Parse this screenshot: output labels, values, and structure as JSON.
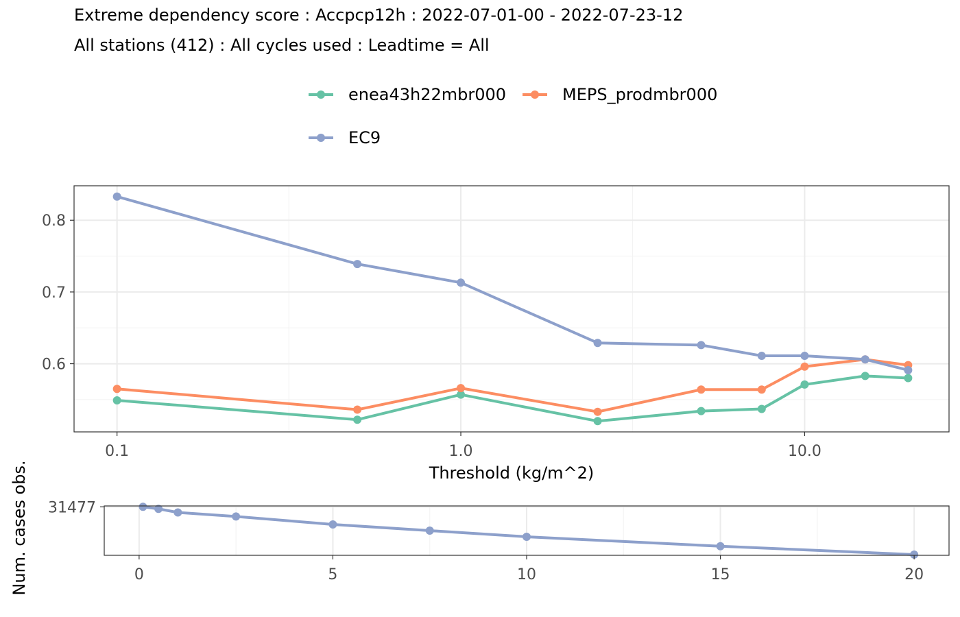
{
  "title": "Extreme dependency score : Accpcp12h : 2022-07-01-00 - 2022-07-23-12",
  "subtitle": "All stations (412) : All cycles used : Leadtime = All",
  "chart_data": [
    {
      "type": "line",
      "xscale": "log10",
      "xlabel": "Threshold (kg/m^2)",
      "ylabel": "",
      "xlim": [
        0.1,
        20
      ],
      "ylim": [
        0.505,
        0.848
      ],
      "xticks": [
        0.1,
        1,
        10
      ],
      "xticklabels": [
        "0.1",
        "1.0",
        "10.0"
      ],
      "yticks": [
        0.6,
        0.7,
        0.8
      ],
      "yticklabels": [
        "0.6",
        "0.7",
        "0.8"
      ],
      "grid": true,
      "legend_position": "top",
      "x": [
        0.1,
        0.5,
        1,
        2.5,
        5,
        7.5,
        10,
        15,
        20
      ],
      "series": [
        {
          "name": "enea43h22mbr000",
          "color": "#66c2a5",
          "values": [
            0.549,
            0.522,
            0.557,
            0.52,
            0.534,
            0.537,
            0.571,
            0.583,
            0.58
          ]
        },
        {
          "name": "MEPS_prodmbr000",
          "color": "#fc8d62",
          "values": [
            0.565,
            0.536,
            0.566,
            0.533,
            0.564,
            0.564,
            0.596,
            0.606,
            0.598
          ]
        },
        {
          "name": "EC9",
          "color": "#8da0cb",
          "values": [
            0.833,
            0.739,
            0.713,
            0.629,
            0.626,
            0.611,
            0.611,
            0.606,
            0.591
          ]
        }
      ]
    },
    {
      "type": "line",
      "xlabel": "",
      "ylabel": "Num. cases obs.",
      "xlim": [
        0,
        20
      ],
      "ylim": [
        24800,
        31600
      ],
      "xticks": [
        0,
        5,
        10,
        15,
        20
      ],
      "xticklabels": [
        "0",
        "5",
        "10",
        "15",
        "20"
      ],
      "yticks": [
        31477
      ],
      "yticklabels": [
        "31477"
      ],
      "grid": true,
      "x": [
        0.1,
        0.5,
        1,
        2.5,
        5,
        7.5,
        10,
        15,
        20
      ],
      "series": [
        {
          "name": "",
          "color": "#8da0cb",
          "values": [
            31477,
            31200,
            30700,
            30150,
            29050,
            28200,
            27350,
            26050,
            24900
          ]
        }
      ]
    }
  ]
}
